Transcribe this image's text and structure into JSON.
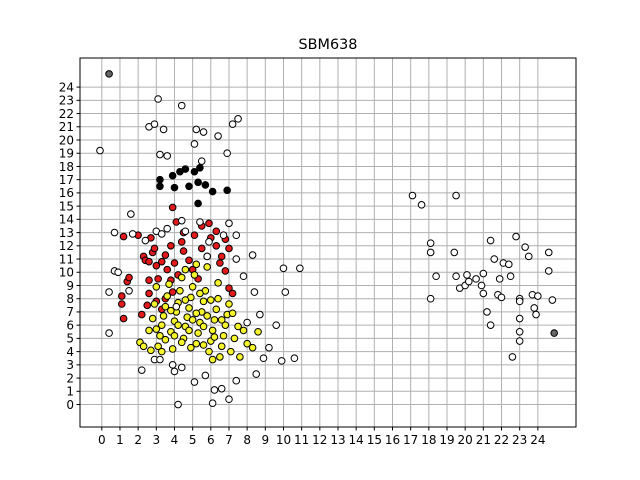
{
  "chart_data": {
    "type": "scatter",
    "title": "SBM638",
    "xlabel": "",
    "ylabel": "",
    "xlim": [
      -1.2,
      26.1
    ],
    "ylim": [
      -1.7,
      26.2
    ],
    "grid": true,
    "xticks": [
      0,
      1,
      2,
      3,
      4,
      5,
      6,
      7,
      8,
      9,
      10,
      11,
      12,
      13,
      14,
      15,
      16,
      17,
      18,
      19,
      20,
      21,
      22,
      23,
      24
    ],
    "yticks": [
      0,
      1,
      2,
      3,
      4,
      5,
      6,
      7,
      8,
      9,
      10,
      11,
      12,
      13,
      14,
      15,
      16,
      17,
      18,
      19,
      20,
      21,
      22,
      23,
      24
    ],
    "colors": {
      "white": "#ffffff",
      "black": "#000000",
      "red": "#e31a1c",
      "yellow": "#f5f52a",
      "gray": "#666666"
    },
    "series": [
      {
        "color": "gray",
        "points": [
          [
            0.4,
            25.0
          ],
          [
            24.9,
            5.4
          ]
        ]
      },
      {
        "color": "black",
        "points": [
          [
            3.2,
            16.5
          ],
          [
            3.2,
            17.0
          ],
          [
            3.9,
            17.3
          ],
          [
            4.0,
            16.4
          ],
          [
            4.3,
            17.6
          ],
          [
            4.6,
            17.8
          ],
          [
            4.8,
            16.5
          ],
          [
            5.1,
            17.6
          ],
          [
            5.3,
            16.8
          ],
          [
            5.3,
            15.2
          ],
          [
            5.7,
            16.6
          ],
          [
            5.4,
            17.9
          ],
          [
            6.1,
            16.1
          ],
          [
            6.9,
            16.2
          ]
        ]
      },
      {
        "color": "red",
        "points": [
          [
            1.1,
            8.2
          ],
          [
            1.1,
            7.6
          ],
          [
            1.2,
            6.5
          ],
          [
            1.2,
            12.7
          ],
          [
            1.4,
            9.3
          ],
          [
            1.5,
            9.6
          ],
          [
            2.0,
            12.8
          ],
          [
            2.2,
            6.8
          ],
          [
            2.3,
            11.2
          ],
          [
            2.4,
            10.9
          ],
          [
            2.6,
            10.8
          ],
          [
            2.6,
            9.4
          ],
          [
            2.8,
            11.5
          ],
          [
            3.0,
            10.5
          ],
          [
            3.1,
            9.5
          ],
          [
            3.3,
            10.8
          ],
          [
            3.5,
            11.3
          ],
          [
            3.6,
            10.2
          ],
          [
            3.8,
            9.4
          ],
          [
            4.0,
            10.7
          ],
          [
            2.6,
            8.4
          ],
          [
            3.0,
            7.8
          ],
          [
            3.5,
            8.0
          ],
          [
            3.9,
            8.5
          ],
          [
            4.2,
            9.8
          ],
          [
            4.5,
            11.6
          ],
          [
            4.8,
            10.9
          ],
          [
            5.0,
            10.2
          ],
          [
            5.3,
            9.5
          ],
          [
            5.5,
            11.8
          ],
          [
            5.8,
            11.2
          ],
          [
            6.0,
            12.6
          ],
          [
            6.3,
            12.0
          ],
          [
            6.6,
            11.2
          ],
          [
            6.8,
            10.1
          ],
          [
            4.1,
            13.8
          ],
          [
            4.4,
            12.3
          ],
          [
            5.5,
            13.5
          ],
          [
            5.9,
            13.7
          ],
          [
            6.3,
            13.1
          ],
          [
            3.9,
            14.9
          ],
          [
            4.5,
            13.0
          ],
          [
            6.5,
            10.7
          ],
          [
            7.0,
            8.8
          ],
          [
            7.2,
            8.4
          ],
          [
            3.8,
            12.0
          ],
          [
            2.9,
            11.8
          ],
          [
            2.7,
            12.6
          ],
          [
            5.1,
            12.8
          ],
          [
            6.8,
            12.5
          ],
          [
            7.0,
            11.8
          ],
          [
            3.3,
            7.2
          ],
          [
            2.5,
            7.5
          ]
        ]
      },
      {
        "color": "yellow",
        "points": [
          [
            2.1,
            4.7
          ],
          [
            2.3,
            4.4
          ],
          [
            2.6,
            5.6
          ],
          [
            2.8,
            6.5
          ],
          [
            2.9,
            7.6
          ],
          [
            3.0,
            8.9
          ],
          [
            3.1,
            4.4
          ],
          [
            3.2,
            5.2
          ],
          [
            3.3,
            6.0
          ],
          [
            3.4,
            6.7
          ],
          [
            3.5,
            7.4
          ],
          [
            3.6,
            8.2
          ],
          [
            3.7,
            9.1
          ],
          [
            3.8,
            5.5
          ],
          [
            3.9,
            4.2
          ],
          [
            4.0,
            6.3
          ],
          [
            4.1,
            7.0
          ],
          [
            4.2,
            7.7
          ],
          [
            4.3,
            8.6
          ],
          [
            4.4,
            9.6
          ],
          [
            4.5,
            5.0
          ],
          [
            4.6,
            5.9
          ],
          [
            4.7,
            6.6
          ],
          [
            4.8,
            7.3
          ],
          [
            4.9,
            8.1
          ],
          [
            5.0,
            8.9
          ],
          [
            5.1,
            9.8
          ],
          [
            5.2,
            4.6
          ],
          [
            5.3,
            5.4
          ],
          [
            5.4,
            6.2
          ],
          [
            5.5,
            7.0
          ],
          [
            5.6,
            7.8
          ],
          [
            5.7,
            8.6
          ],
          [
            5.8,
            10.4
          ],
          [
            5.9,
            4.0
          ],
          [
            6.0,
            4.8
          ],
          [
            6.1,
            5.6
          ],
          [
            6.2,
            6.4
          ],
          [
            6.3,
            7.2
          ],
          [
            6.4,
            8.0
          ],
          [
            6.5,
            3.6
          ],
          [
            6.6,
            4.4
          ],
          [
            6.7,
            5.2
          ],
          [
            6.8,
            6.0
          ],
          [
            6.9,
            6.8
          ],
          [
            7.0,
            7.6
          ],
          [
            7.1,
            4.0
          ],
          [
            7.3,
            5.0
          ],
          [
            7.5,
            5.9
          ],
          [
            7.6,
            3.6
          ],
          [
            7.8,
            5.6
          ],
          [
            8.0,
            4.6
          ],
          [
            8.3,
            4.3
          ],
          [
            8.6,
            5.5
          ],
          [
            4.0,
            5.2
          ],
          [
            4.4,
            4.7
          ],
          [
            4.8,
            5.6
          ],
          [
            5.2,
            6.9
          ],
          [
            5.6,
            5.9
          ],
          [
            6.0,
            7.9
          ],
          [
            3.5,
            4.9
          ],
          [
            3.0,
            5.7
          ],
          [
            2.7,
            4.1
          ],
          [
            4.6,
            7.9
          ],
          [
            5.0,
            6.4
          ],
          [
            5.4,
            8.4
          ],
          [
            5.8,
            6.7
          ],
          [
            6.2,
            5.1
          ],
          [
            4.2,
            6.0
          ],
          [
            3.8,
            7.1
          ],
          [
            6.6,
            6.4
          ],
          [
            7.2,
            6.9
          ],
          [
            4.9,
            4.3
          ],
          [
            5.6,
            4.5
          ],
          [
            6.1,
            3.4
          ],
          [
            3.3,
            4.0
          ],
          [
            5.2,
            10.6
          ],
          [
            4.6,
            10.2
          ],
          [
            6.4,
            9.2
          ]
        ]
      },
      {
        "color": "white",
        "points": [
          [
            -0.1,
            19.2
          ],
          [
            0.4,
            8.5
          ],
          [
            0.4,
            5.4
          ],
          [
            0.7,
            10.1
          ],
          [
            0.7,
            13.0
          ],
          [
            1.5,
            8.6
          ],
          [
            1.6,
            14.4
          ],
          [
            2.2,
            2.6
          ],
          [
            2.4,
            12.4
          ],
          [
            2.6,
            21.0
          ],
          [
            2.9,
            3.4
          ],
          [
            3.0,
            13.1
          ],
          [
            3.1,
            23.1
          ],
          [
            3.2,
            18.9
          ],
          [
            3.2,
            3.4
          ],
          [
            3.3,
            12.9
          ],
          [
            3.4,
            20.8
          ],
          [
            3.6,
            18.8
          ],
          [
            3.9,
            3.0
          ],
          [
            4.0,
            2.5
          ],
          [
            4.1,
            7.4
          ],
          [
            4.2,
            0.0
          ],
          [
            4.4,
            2.8
          ],
          [
            4.4,
            22.6
          ],
          [
            4.4,
            13.9
          ],
          [
            4.6,
            13.1
          ],
          [
            5.1,
            19.7
          ],
          [
            5.1,
            1.7
          ],
          [
            5.2,
            20.8
          ],
          [
            5.4,
            13.8
          ],
          [
            5.5,
            18.4
          ],
          [
            5.6,
            20.6
          ],
          [
            5.7,
            2.2
          ],
          [
            5.8,
            11.2
          ],
          [
            5.9,
            12.3
          ],
          [
            6.1,
            0.1
          ],
          [
            6.2,
            1.1
          ],
          [
            6.4,
            20.3
          ],
          [
            6.6,
            1.2
          ],
          [
            6.9,
            19.0
          ],
          [
            7.0,
            0.4
          ],
          [
            7.2,
            21.2
          ],
          [
            7.4,
            1.8
          ],
          [
            7.4,
            11.0
          ],
          [
            7.5,
            21.6
          ],
          [
            7.8,
            9.7
          ],
          [
            8.0,
            6.2
          ],
          [
            8.3,
            11.3
          ],
          [
            8.4,
            8.5
          ],
          [
            8.5,
            2.3
          ],
          [
            8.7,
            6.8
          ],
          [
            9.2,
            4.3
          ],
          [
            9.6,
            6.0
          ],
          [
            9.9,
            3.3
          ],
          [
            10.1,
            8.5
          ],
          [
            10.6,
            3.5
          ],
          [
            10.9,
            10.3
          ],
          [
            17.1,
            15.8
          ],
          [
            17.6,
            15.1
          ],
          [
            18.1,
            12.2
          ],
          [
            18.1,
            11.5
          ],
          [
            18.1,
            8.0
          ],
          [
            18.4,
            9.7
          ],
          [
            19.5,
            15.8
          ],
          [
            19.4,
            11.5
          ],
          [
            19.5,
            9.7
          ],
          [
            19.7,
            8.8
          ],
          [
            20.0,
            9.0
          ],
          [
            20.1,
            9.8
          ],
          [
            20.2,
            9.3
          ],
          [
            20.6,
            9.5
          ],
          [
            20.9,
            9.0
          ],
          [
            21.0,
            8.4
          ],
          [
            21.0,
            9.9
          ],
          [
            21.2,
            7.0
          ],
          [
            21.4,
            12.4
          ],
          [
            21.4,
            6.0
          ],
          [
            21.6,
            11.0
          ],
          [
            21.8,
            8.3
          ],
          [
            21.9,
            9.5
          ],
          [
            22.0,
            8.1
          ],
          [
            22.1,
            10.7
          ],
          [
            22.4,
            10.6
          ],
          [
            22.5,
            9.7
          ],
          [
            22.6,
            3.6
          ],
          [
            22.8,
            12.7
          ],
          [
            23.0,
            8.0
          ],
          [
            23.0,
            7.8
          ],
          [
            23.0,
            6.5
          ],
          [
            23.0,
            5.5
          ],
          [
            23.0,
            4.8
          ],
          [
            23.3,
            11.9
          ],
          [
            23.5,
            11.2
          ],
          [
            23.7,
            8.3
          ],
          [
            23.8,
            7.3
          ],
          [
            23.9,
            6.8
          ],
          [
            24.0,
            8.2
          ],
          [
            24.6,
            11.5
          ],
          [
            24.6,
            10.1
          ],
          [
            24.8,
            7.9
          ],
          [
            0.9,
            10.0
          ],
          [
            1.7,
            12.9
          ],
          [
            2.9,
            21.2
          ],
          [
            6.7,
            12.8
          ],
          [
            7.4,
            12.8
          ],
          [
            7.0,
            13.7
          ],
          [
            3.6,
            13.3
          ],
          [
            8.9,
            3.5
          ],
          [
            10.0,
            10.3
          ]
        ]
      }
    ]
  }
}
